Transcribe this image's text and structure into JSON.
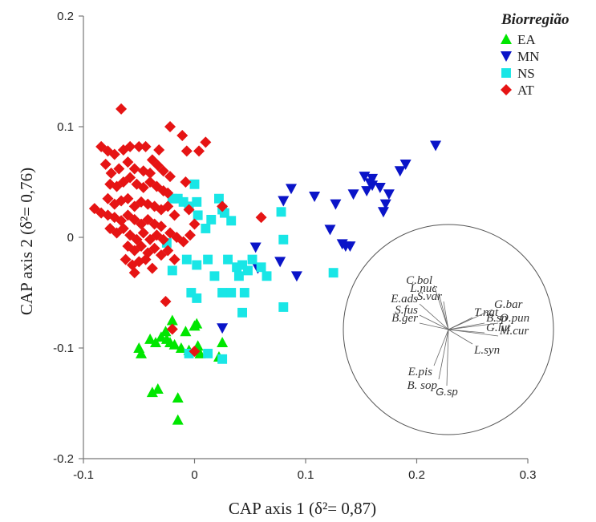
{
  "chart_data": {
    "type": "scatter",
    "xlabel": "CAP axis 1 (δ²= 0,87)",
    "ylabel": "CAP axis 2 (δ²= 0,76)",
    "xlim": [
      -0.1,
      0.3
    ],
    "ylim": [
      -0.2,
      0.2
    ],
    "x_ticks": [
      "-0.1",
      "0",
      "0.1",
      "0.2",
      "0.3"
    ],
    "y_ticks": [
      "0.2",
      "0.1",
      "0",
      "-0.1",
      "-0.2"
    ],
    "legend_title": "Biorregião",
    "legend_position": "top-right",
    "series": [
      {
        "name": "EA",
        "marker": "triangle-up",
        "color": "#00e600",
        "points": [
          [
            -0.05,
            -0.1
          ],
          [
            -0.048,
            -0.105
          ],
          [
            -0.04,
            -0.092
          ],
          [
            -0.035,
            -0.095
          ],
          [
            -0.03,
            -0.09
          ],
          [
            -0.025,
            -0.092
          ],
          [
            -0.022,
            -0.095
          ],
          [
            -0.018,
            -0.097
          ],
          [
            -0.012,
            -0.1
          ],
          [
            -0.005,
            -0.102
          ],
          [
            0.0,
            -0.08
          ],
          [
            0.002,
            -0.078
          ],
          [
            0.005,
            -0.105
          ],
          [
            0.022,
            -0.108
          ],
          [
            0.025,
            -0.095
          ],
          [
            -0.026,
            -0.085
          ],
          [
            -0.02,
            -0.075
          ],
          [
            -0.038,
            -0.14
          ],
          [
            -0.033,
            -0.137
          ],
          [
            -0.015,
            -0.145
          ],
          [
            -0.015,
            -0.165
          ],
          [
            -0.008,
            -0.085
          ],
          [
            0.003,
            -0.098
          ]
        ]
      },
      {
        "name": "MN",
        "marker": "triangle-down",
        "color": "#0a14c8",
        "points": [
          [
            0.025,
            -0.082
          ],
          [
            0.055,
            -0.009
          ],
          [
            0.057,
            -0.028
          ],
          [
            0.077,
            -0.022
          ],
          [
            0.08,
            0.033
          ],
          [
            0.087,
            0.044
          ],
          [
            0.092,
            -0.035
          ],
          [
            0.108,
            0.037
          ],
          [
            0.122,
            0.007
          ],
          [
            0.127,
            0.03
          ],
          [
            0.133,
            -0.006
          ],
          [
            0.136,
            -0.008
          ],
          [
            0.14,
            -0.008
          ],
          [
            0.143,
            0.039
          ],
          [
            0.153,
            0.055
          ],
          [
            0.155,
            0.042
          ],
          [
            0.158,
            0.049
          ],
          [
            0.16,
            0.053
          ],
          [
            0.167,
            0.045
          ],
          [
            0.17,
            0.023
          ],
          [
            0.172,
            0.03
          ],
          [
            0.175,
            0.039
          ],
          [
            0.185,
            0.06
          ],
          [
            0.19,
            0.066
          ],
          [
            0.217,
            0.083
          ],
          [
            0.16,
            0.047
          ]
        ]
      },
      {
        "name": "NS",
        "marker": "square",
        "color": "#19e6e6",
        "points": [
          [
            -0.02,
            0.035
          ],
          [
            -0.015,
            0.035
          ],
          [
            -0.01,
            0.032
          ],
          [
            -0.005,
            0.028
          ],
          [
            0.0,
            0.048
          ],
          [
            0.002,
            0.032
          ],
          [
            0.003,
            0.02
          ],
          [
            0.01,
            0.008
          ],
          [
            -0.025,
            -0.005
          ],
          [
            -0.02,
            -0.03
          ],
          [
            -0.007,
            -0.02
          ],
          [
            0.002,
            -0.025
          ],
          [
            0.015,
            0.016
          ],
          [
            0.022,
            0.035
          ],
          [
            0.025,
            0.025
          ],
          [
            0.027,
            0.022
          ],
          [
            0.033,
            0.015
          ],
          [
            0.012,
            -0.02
          ],
          [
            0.018,
            -0.035
          ],
          [
            0.025,
            -0.05
          ],
          [
            0.03,
            -0.02
          ],
          [
            0.033,
            -0.05
          ],
          [
            0.038,
            -0.027
          ],
          [
            0.04,
            -0.035
          ],
          [
            0.043,
            -0.025
          ],
          [
            0.048,
            -0.03
          ],
          [
            0.052,
            -0.02
          ],
          [
            0.06,
            -0.027
          ],
          [
            0.065,
            -0.035
          ],
          [
            0.078,
            0.023
          ],
          [
            0.08,
            -0.002
          ],
          [
            0.08,
            -0.063
          ],
          [
            0.125,
            -0.032
          ],
          [
            0.045,
            -0.05
          ],
          [
            0.043,
            -0.068
          ],
          [
            -0.003,
            -0.05
          ],
          [
            0.002,
            -0.055
          ],
          [
            0.012,
            -0.105
          ],
          [
            0.025,
            -0.11
          ],
          [
            -0.005,
            -0.105
          ]
        ]
      },
      {
        "name": "AT",
        "marker": "diamond",
        "color": "#e61414",
        "points": [
          [
            -0.066,
            0.116
          ],
          [
            -0.084,
            0.082
          ],
          [
            -0.078,
            0.078
          ],
          [
            -0.072,
            0.075
          ],
          [
            -0.064,
            0.079
          ],
          [
            -0.058,
            0.082
          ],
          [
            -0.05,
            0.082
          ],
          [
            -0.044,
            0.082
          ],
          [
            -0.038,
            0.07
          ],
          [
            -0.032,
            0.079
          ],
          [
            -0.022,
            0.1
          ],
          [
            -0.011,
            0.092
          ],
          [
            -0.007,
            0.078
          ],
          [
            0.01,
            0.086
          ],
          [
            0.004,
            0.078
          ],
          [
            -0.08,
            0.066
          ],
          [
            -0.075,
            0.058
          ],
          [
            -0.068,
            0.062
          ],
          [
            -0.06,
            0.068
          ],
          [
            -0.054,
            0.062
          ],
          [
            -0.046,
            0.06
          ],
          [
            -0.04,
            0.058
          ],
          [
            -0.033,
            0.065
          ],
          [
            -0.028,
            0.06
          ],
          [
            -0.022,
            0.055
          ],
          [
            -0.076,
            0.048
          ],
          [
            -0.07,
            0.046
          ],
          [
            -0.064,
            0.05
          ],
          [
            -0.058,
            0.054
          ],
          [
            -0.052,
            0.048
          ],
          [
            -0.046,
            0.045
          ],
          [
            -0.04,
            0.05
          ],
          [
            -0.034,
            0.046
          ],
          [
            -0.028,
            0.042
          ],
          [
            -0.024,
            0.04
          ],
          [
            -0.078,
            0.035
          ],
          [
            -0.072,
            0.03
          ],
          [
            -0.066,
            0.033
          ],
          [
            -0.06,
            0.035
          ],
          [
            -0.054,
            0.028
          ],
          [
            -0.048,
            0.032
          ],
          [
            -0.042,
            0.03
          ],
          [
            -0.036,
            0.028
          ],
          [
            -0.03,
            0.025
          ],
          [
            -0.024,
            0.028
          ],
          [
            -0.09,
            0.026
          ],
          [
            -0.084,
            0.022
          ],
          [
            -0.078,
            0.02
          ],
          [
            -0.072,
            0.018
          ],
          [
            -0.066,
            0.015
          ],
          [
            -0.06,
            0.02
          ],
          [
            -0.054,
            0.016
          ],
          [
            -0.048,
            0.012
          ],
          [
            -0.042,
            0.016
          ],
          [
            -0.036,
            0.012
          ],
          [
            -0.03,
            0.01
          ],
          [
            -0.018,
            0.02
          ],
          [
            -0.005,
            0.025
          ],
          [
            0.0,
            0.012
          ],
          [
            0.025,
            0.028
          ],
          [
            -0.076,
            0.008
          ],
          [
            -0.07,
            0.004
          ],
          [
            -0.064,
            0.008
          ],
          [
            -0.058,
            0.002
          ],
          [
            -0.052,
            -0.002
          ],
          [
            -0.046,
            0.004
          ],
          [
            -0.04,
            -0.002
          ],
          [
            -0.034,
            0.002
          ],
          [
            -0.028,
            -0.002
          ],
          [
            -0.022,
            0.004
          ],
          [
            -0.016,
            0.0
          ],
          [
            -0.01,
            -0.004
          ],
          [
            -0.004,
            0.002
          ],
          [
            -0.06,
            -0.008
          ],
          [
            -0.054,
            -0.012
          ],
          [
            -0.048,
            -0.008
          ],
          [
            -0.042,
            -0.014
          ],
          [
            -0.036,
            -0.01
          ],
          [
            -0.03,
            -0.016
          ],
          [
            -0.024,
            -0.012
          ],
          [
            -0.018,
            -0.02
          ],
          [
            -0.062,
            -0.02
          ],
          [
            -0.056,
            -0.025
          ],
          [
            -0.05,
            -0.022
          ],
          [
            -0.044,
            -0.02
          ],
          [
            -0.038,
            -0.028
          ],
          [
            -0.054,
            -0.032
          ],
          [
            -0.026,
            -0.058
          ],
          [
            -0.02,
            -0.083
          ],
          [
            0.0,
            -0.103
          ],
          [
            0.06,
            0.018
          ],
          [
            -0.008,
            0.05
          ]
        ]
      }
    ],
    "ordination_vectors": [
      {
        "label": "C.bol",
        "dx": -0.018,
        "dy": 0.055
      },
      {
        "label": "L.nuc",
        "dx": -0.012,
        "dy": 0.045
      },
      {
        "label": "S.var",
        "dx": -0.006,
        "dy": 0.035
      },
      {
        "label": "E.ads",
        "dx": -0.036,
        "dy": 0.032
      },
      {
        "label": "S.fus",
        "dx": -0.036,
        "dy": 0.018
      },
      {
        "label": "B.ger",
        "dx": -0.036,
        "dy": 0.008
      },
      {
        "label": "T.nat",
        "dx": 0.03,
        "dy": 0.015
      },
      {
        "label": "G.bar",
        "dx": 0.055,
        "dy": 0.025
      },
      {
        "label": "B.sp",
        "dx": 0.045,
        "dy": 0.008
      },
      {
        "label": "O.pun",
        "dx": 0.062,
        "dy": 0.008
      },
      {
        "label": "G.lut",
        "dx": 0.045,
        "dy": -0.004
      },
      {
        "label": "M.cur",
        "dx": 0.062,
        "dy": -0.008
      },
      {
        "label": "L.syn",
        "dx": 0.03,
        "dy": -0.018
      },
      {
        "label": "E.pis",
        "dx": -0.018,
        "dy": -0.045
      },
      {
        "label": "B. sop",
        "dx": -0.012,
        "dy": -0.062
      },
      {
        "label": "G.sp",
        "dx": -0.002,
        "dy": -0.07
      }
    ]
  }
}
